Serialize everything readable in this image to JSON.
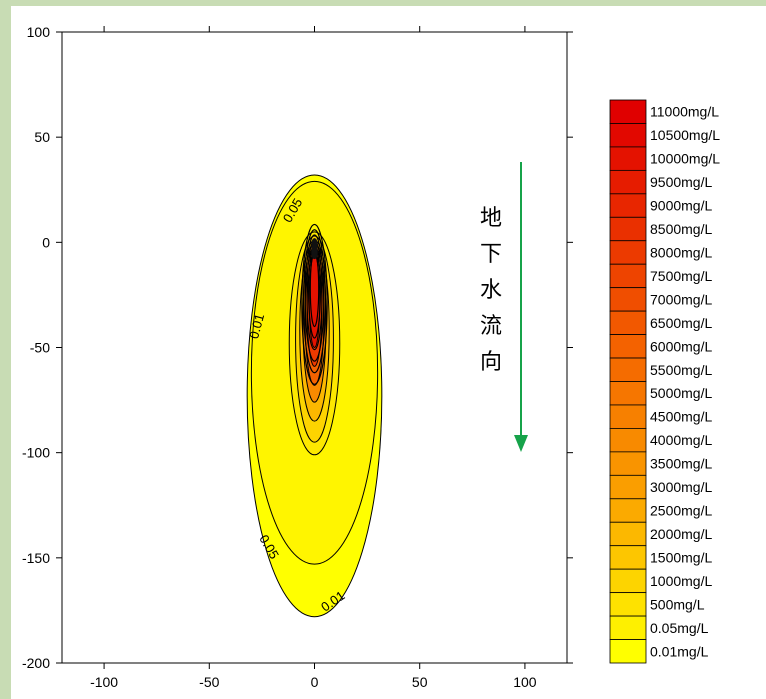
{
  "chart_data": {
    "type": "contour",
    "title": "",
    "xlabel": "",
    "ylabel": "",
    "xlim": [
      -120,
      120
    ],
    "ylim": [
      -200,
      100
    ],
    "x_ticks": [
      -100,
      -50,
      0,
      50,
      100
    ],
    "y_ticks": [
      100,
      50,
      0,
      -50,
      -100,
      -150,
      -200
    ],
    "grid": false,
    "legend": {
      "placement": "right",
      "entries": [
        {
          "label": "11000mg/L",
          "color": "#e00000"
        },
        {
          "label": "10500mg/L",
          "color": "#e20800"
        },
        {
          "label": "10000mg/L",
          "color": "#e41200"
        },
        {
          "label": "9500mg/L",
          "color": "#e61c00"
        },
        {
          "label": "9000mg/L",
          "color": "#e82600"
        },
        {
          "label": "8500mg/L",
          "color": "#ea3000"
        },
        {
          "label": "8000mg/L",
          "color": "#ec3a00"
        },
        {
          "label": "7500mg/L",
          "color": "#ee4400"
        },
        {
          "label": "7000mg/L",
          "color": "#f04e00"
        },
        {
          "label": "6500mg/L",
          "color": "#f25800"
        },
        {
          "label": "6000mg/L",
          "color": "#f46200"
        },
        {
          "label": "5500mg/L",
          "color": "#f56c00"
        },
        {
          "label": "5000mg/L",
          "color": "#f67600"
        },
        {
          "label": "4500mg/L",
          "color": "#f78000"
        },
        {
          "label": "4000mg/L",
          "color": "#f88a00"
        },
        {
          "label": "3500mg/L",
          "color": "#f99400"
        },
        {
          "label": "3000mg/L",
          "color": "#fa9e00"
        },
        {
          "label": "2500mg/L",
          "color": "#fbaa00"
        },
        {
          "label": "2000mg/L",
          "color": "#fcb800"
        },
        {
          "label": "1500mg/L",
          "color": "#fdc600"
        },
        {
          "label": "1000mg/L",
          "color": "#fdd400"
        },
        {
          "label": "500mg/L",
          "color": "#fee200"
        },
        {
          "label": "0.05mg/L",
          "color": "#fef000"
        },
        {
          "label": "0.01mg/L",
          "color": "#ffff00"
        }
      ]
    },
    "contours": [
      {
        "level": 0.01,
        "label": "0.01",
        "color": "#ffff00",
        "cx": 0,
        "cy": -73,
        "rx": 32,
        "ry": 105
      },
      {
        "level": 0.05,
        "label": "0.05",
        "color": "#fff500",
        "cx": 0,
        "cy": -62,
        "rx": 30,
        "ry": 91
      },
      {
        "level": 500,
        "color": "#fde800",
        "cx": 0,
        "cy": -48,
        "rx": 12,
        "ry": 53
      },
      {
        "level": 1000,
        "color": "#fdd400",
        "cx": 0,
        "cy": -46,
        "rx": 9,
        "ry": 49
      },
      {
        "level": 2000,
        "color": "#fcb800",
        "cx": 0,
        "cy": -42,
        "rx": 7,
        "ry": 43
      },
      {
        "level": 4000,
        "color": "#f88a00",
        "cx": 0,
        "cy": -38,
        "rx": 5.5,
        "ry": 38
      },
      {
        "level": 6000,
        "color": "#f46200",
        "cx": 0,
        "cy": -35,
        "rx": 4.5,
        "ry": 33
      },
      {
        "level": 8000,
        "color": "#ec3a00",
        "cx": 0,
        "cy": -32,
        "rx": 3.5,
        "ry": 27
      },
      {
        "level": 10000,
        "color": "#e41200",
        "cx": 0,
        "cy": -28,
        "rx": 2.5,
        "ry": 22
      }
    ],
    "annotations": [
      {
        "text": "0.05",
        "x": -10,
        "y": 15,
        "rotate": -60
      },
      {
        "text": "0.01",
        "x": -27,
        "y": -40,
        "rotate": -75
      },
      {
        "text": "0.05",
        "x": -22,
        "y": -145,
        "rotate": 60
      },
      {
        "text": "0.01",
        "x": 9,
        "y": -171,
        "rotate": -35
      }
    ],
    "flow_direction_text": [
      "地",
      "下",
      "水",
      "流",
      "向"
    ],
    "flow_arrow_color": "#16a34a"
  }
}
